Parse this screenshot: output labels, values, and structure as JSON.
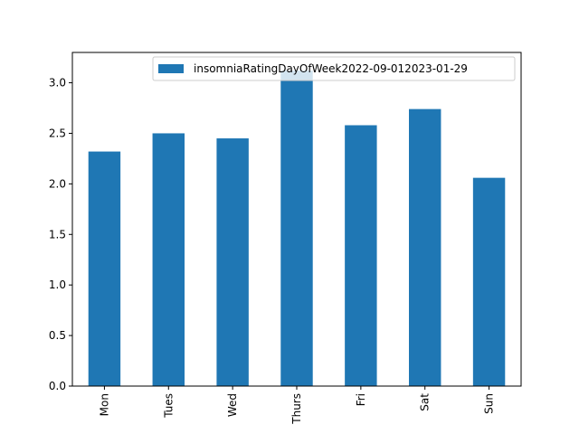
{
  "chart_data": {
    "type": "bar",
    "title": "",
    "xlabel": "",
    "ylabel": "",
    "categories": [
      "Mon",
      "Tues",
      "Wed",
      "Thurs",
      "Fri",
      "Sat",
      "Sun"
    ],
    "series": [
      {
        "name": "insomniaRatingDayOfWeek2022-09-012023-01-29",
        "color": "#1f77b4",
        "values": [
          2.32,
          2.5,
          2.45,
          3.12,
          2.58,
          2.74,
          2.06
        ]
      }
    ],
    "ylim": [
      0,
      3.3
    ],
    "yticks": [
      0.0,
      0.5,
      1.0,
      1.5,
      2.0,
      2.5,
      3.0
    ],
    "ytick_labels": [
      "0.0",
      "0.5",
      "1.0",
      "1.5",
      "2.0",
      "2.5",
      "3.0"
    ],
    "xtick_rotation": "vertical",
    "grid": false,
    "legend_position": "top-right"
  }
}
